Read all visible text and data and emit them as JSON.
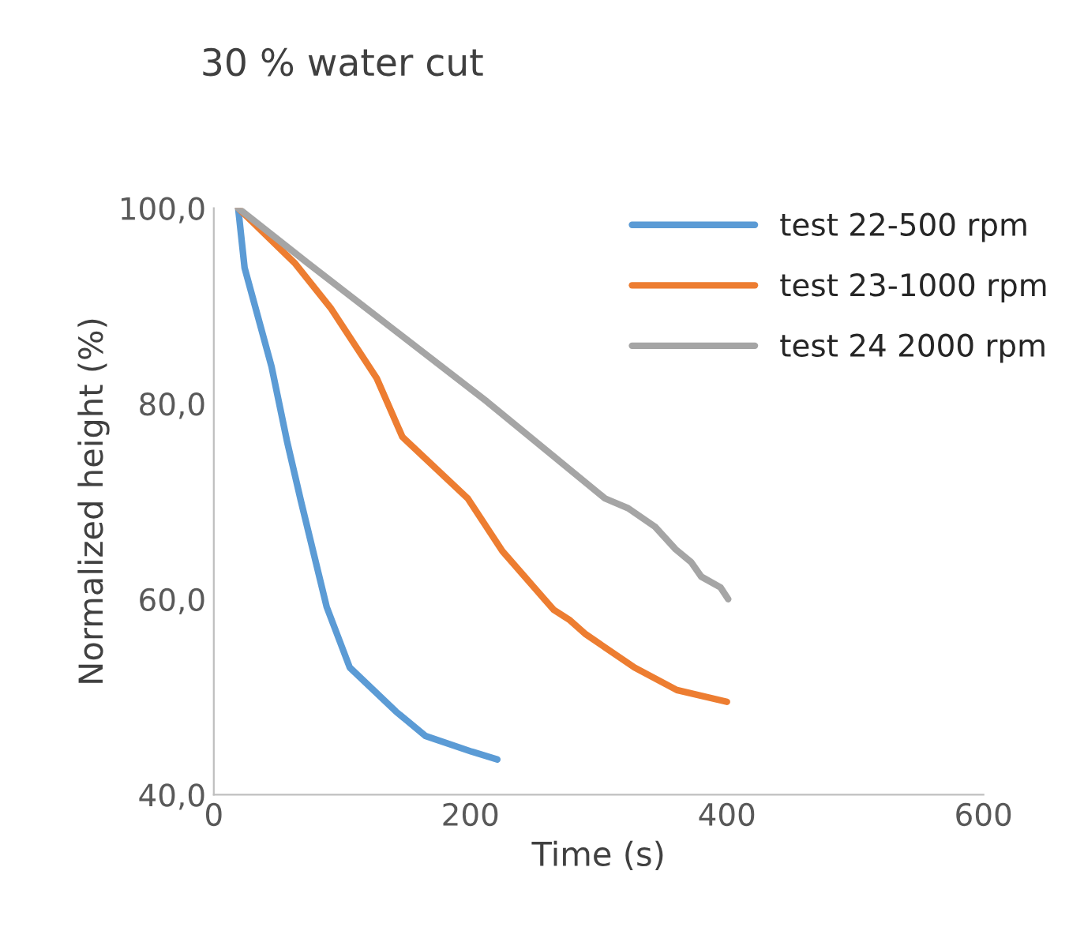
{
  "chart_data": {
    "type": "line",
    "title": "30 % water cut",
    "xlabel": "Time (s)",
    "ylabel": "Normalized height (%)",
    "xlim": [
      0,
      600
    ],
    "xticks": [
      0,
      200,
      400,
      600
    ],
    "ylim": [
      40,
      100
    ],
    "yticks": [
      {
        "value": 40,
        "label": "40,0"
      },
      {
        "value": 60,
        "label": "60,0"
      },
      {
        "value": 80,
        "label": "80,0"
      },
      {
        "value": 100,
        "label": "100,0"
      }
    ],
    "grid": false,
    "legend": "top right",
    "marker": "none",
    "line_style": "solid",
    "series": [
      {
        "name": "test 22-500 rpm",
        "color": "#5b9bd5",
        "x": [
          19,
          24,
          45,
          57,
          68,
          88,
          106,
          142,
          165,
          201,
          221
        ],
        "values": [
          100,
          93.9,
          83.8,
          76.2,
          70,
          59.2,
          53,
          48.5,
          46,
          44.4,
          43.6
        ]
      },
      {
        "name": "test 23-1000 rpm",
        "color": "#ed7d31",
        "x": [
          19,
          63,
          91,
          127,
          147,
          198,
          225,
          265,
          277,
          290,
          328,
          361,
          400
        ],
        "values": [
          100,
          94.4,
          89.8,
          82.6,
          76.6,
          70.3,
          64.9,
          58.9,
          57.9,
          56.4,
          53,
          50.7,
          49.5
        ]
      },
      {
        "name": "test 24 2000 rpm",
        "color": "#a5a5a5",
        "x": [
          19,
          73,
          142,
          213,
          265,
          305,
          323,
          344,
          360,
          372,
          380,
          395,
          401
        ],
        "values": [
          100,
          94.4,
          87.4,
          80.2,
          74.6,
          70.3,
          69.3,
          67.4,
          65.1,
          63.8,
          62.3,
          61.2,
          60
        ]
      }
    ]
  }
}
